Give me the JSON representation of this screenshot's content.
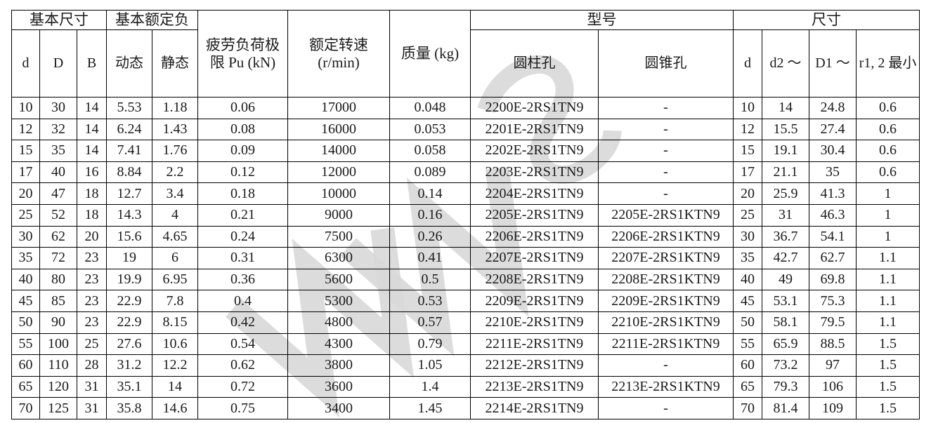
{
  "colors": {
    "border": "#000000",
    "text": "#1a1a1a",
    "watermark": "#d8d8d8"
  },
  "watermark": {
    "description": "light-gray diagonal logo glyphs (zigzag W shapes and S curve)",
    "color": "#d8d8d8"
  },
  "table": {
    "header": {
      "basic_dimensions": "基本尺寸",
      "basic_load_rating": "基本额定负",
      "fatigue_limit": "疲劳负荷极限 Pu (kN)",
      "rated_speed": "额定转速 (r/min)",
      "mass": "质量 (kg)",
      "model": "型号",
      "dimensions": "尺寸",
      "sub": {
        "d": "d",
        "D": "D",
        "B": "B",
        "dynamic": "动态",
        "static": "静态",
        "cylindrical_bore": "圆柱孔",
        "tapered_bore": "圆锥孔",
        "d_dim": "d",
        "d2": "d2 ～",
        "D1": "D1 ～",
        "r12_min": "r1, 2 最小"
      }
    },
    "columns": [
      "d",
      "D",
      "B",
      "dynamic",
      "static",
      "fatigue_pu",
      "rated_speed",
      "mass",
      "model_cylindrical",
      "model_tapered",
      "d_dim",
      "d2",
      "D1",
      "r12_min"
    ],
    "rows": [
      [
        "10",
        "30",
        "14",
        "5.53",
        "1.18",
        "0.06",
        "17000",
        "0.048",
        "2200E-2RS1TN9",
        "-",
        "10",
        "14",
        "24.8",
        "0.6"
      ],
      [
        "12",
        "32",
        "14",
        "6.24",
        "1.43",
        "0.08",
        "16000",
        "0.053",
        "2201E-2RS1TN9",
        "-",
        "12",
        "15.5",
        "27.4",
        "0.6"
      ],
      [
        "15",
        "35",
        "14",
        "7.41",
        "1.76",
        "0.09",
        "14000",
        "0.058",
        "2202E-2RS1TN9",
        "-",
        "15",
        "19.1",
        "30.4",
        "0.6"
      ],
      [
        "17",
        "40",
        "16",
        "8.84",
        "2.2",
        "0.12",
        "12000",
        "0.089",
        "2203E-2RS1TN9",
        "-",
        "17",
        "21.1",
        "35",
        "0.6"
      ],
      [
        "20",
        "47",
        "18",
        "12.7",
        "3.4",
        "0.18",
        "10000",
        "0.14",
        "2204E-2RS1TN9",
        "-",
        "20",
        "25.9",
        "41.3",
        "1"
      ],
      [
        "25",
        "52",
        "18",
        "14.3",
        "4",
        "0.21",
        "9000",
        "0.16",
        "2205E-2RS1TN9",
        "2205E-2RS1KTN9",
        "25",
        "31",
        "46.3",
        "1"
      ],
      [
        "30",
        "62",
        "20",
        "15.6",
        "4.65",
        "0.24",
        "7500",
        "0.26",
        "2206E-2RS1TN9",
        "2206E-2RS1KTN9",
        "30",
        "36.7",
        "54.1",
        "1"
      ],
      [
        "35",
        "72",
        "23",
        "19",
        "6",
        "0.31",
        "6300",
        "0.41",
        "2207E-2RS1TN9",
        "2207E-2RS1KTN9",
        "35",
        "42.7",
        "62.7",
        "1.1"
      ],
      [
        "40",
        "80",
        "23",
        "19.9",
        "6.95",
        "0.36",
        "5600",
        "0.5",
        "2208E-2RS1TN9",
        "2208E-2RS1KTN9",
        "40",
        "49",
        "69.8",
        "1.1"
      ],
      [
        "45",
        "85",
        "23",
        "22.9",
        "7.8",
        "0.4",
        "5300",
        "0.53",
        "2209E-2RS1TN9",
        "2209E-2RS1KTN9",
        "45",
        "53.1",
        "75.3",
        "1.1"
      ],
      [
        "50",
        "90",
        "23",
        "22.9",
        "8.15",
        "0.42",
        "4800",
        "0.57",
        "2210E-2RS1TN9",
        "2210E-2RS1KTN9",
        "50",
        "58.1",
        "79.5",
        "1.1"
      ],
      [
        "55",
        "100",
        "25",
        "27.6",
        "10.6",
        "0.54",
        "4300",
        "0.79",
        "2211E-2RS1TN9",
        "2211E-2RS1KTN9",
        "55",
        "65.9",
        "88.5",
        "1.5"
      ],
      [
        "60",
        "110",
        "28",
        "31.2",
        "12.2",
        "0.62",
        "3800",
        "1.05",
        "2212E-2RS1TN9",
        "-",
        "60",
        "73.2",
        "97",
        "1.5"
      ],
      [
        "65",
        "120",
        "31",
        "35.1",
        "14",
        "0.72",
        "3600",
        "1.4",
        "2213E-2RS1TN9",
        "2213E-2RS1KTN9",
        "65",
        "79.3",
        "106",
        "1.5"
      ],
      [
        "70",
        "125",
        "31",
        "35.8",
        "14.6",
        "0.75",
        "3400",
        "1.45",
        "2214E-2RS1TN9",
        "-",
        "70",
        "81.4",
        "109",
        "1.5"
      ]
    ]
  }
}
